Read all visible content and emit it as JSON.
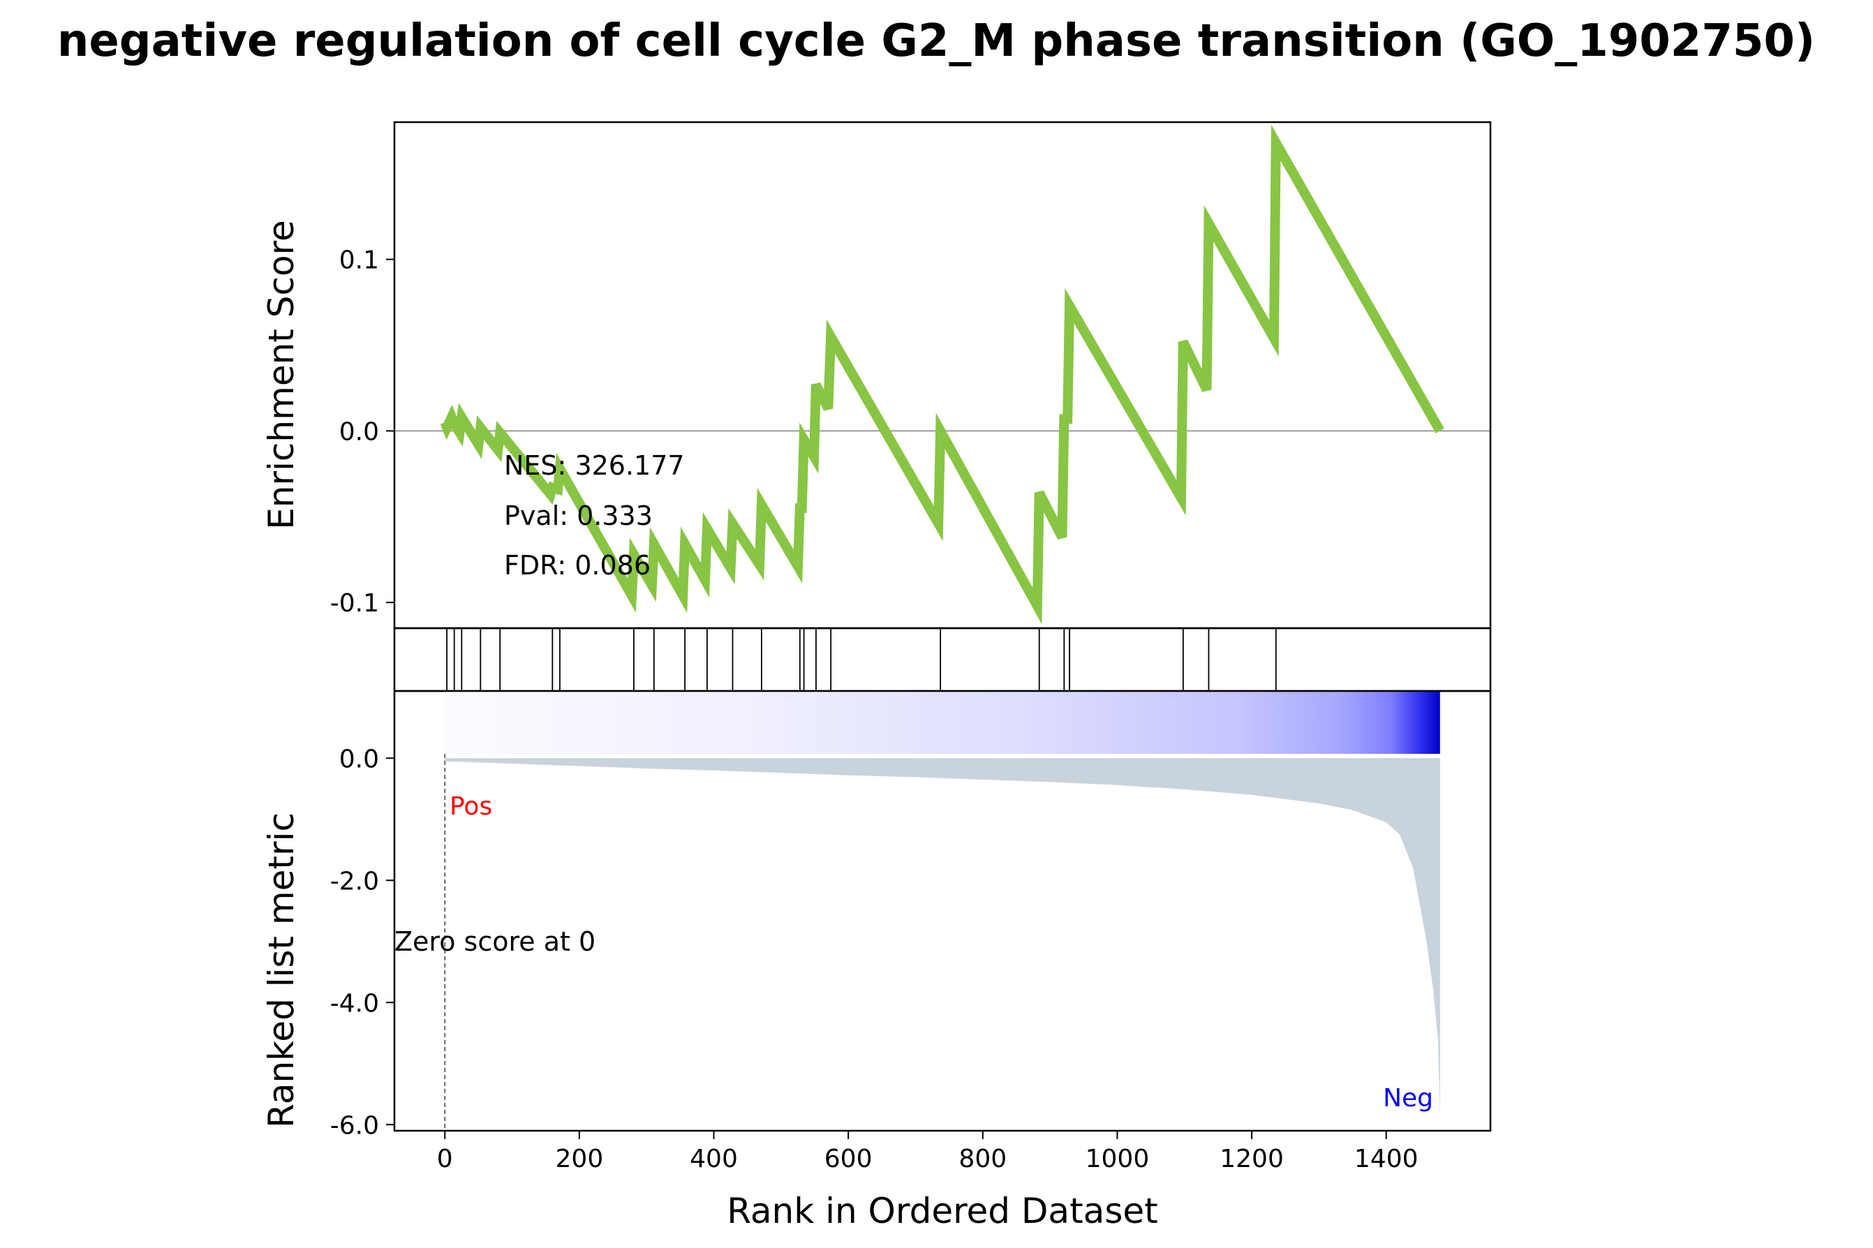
{
  "chart_data": {
    "type": "line",
    "title": "negative regulation of cell cycle G2_M phase transition (GO_1902750)",
    "xlabel": "Rank in Ordered Dataset",
    "xlim": [
      -75,
      1555
    ],
    "x_ticks": [
      0,
      200,
      400,
      600,
      800,
      1000,
      1200,
      1400
    ],
    "enrichment": {
      "ylabel": "Enrichment Score",
      "ylim": [
        -0.115,
        0.18
      ],
      "y_ticks": [
        0.1,
        0.0,
        -0.1
      ],
      "y_tick_labels": [
        "0.1",
        "0.0",
        "-0.1"
      ],
      "line_color": "#88c544",
      "stats": [
        "NES: 326.177",
        "Pval: 0.333",
        "FDR: 0.086"
      ],
      "points": [
        [
          0,
          0.005
        ],
        [
          3,
          0.002
        ],
        [
          10,
          0.008
        ],
        [
          14,
          0.004
        ],
        [
          22,
          -0.001
        ],
        [
          25,
          0.008
        ],
        [
          50,
          -0.008
        ],
        [
          53,
          0.002
        ],
        [
          79,
          -0.011
        ],
        [
          82,
          -0.001
        ],
        [
          157,
          -0.037
        ],
        [
          160,
          -0.033
        ],
        [
          168,
          -0.034
        ],
        [
          171,
          -0.022
        ],
        [
          278,
          -0.096
        ],
        [
          281,
          -0.072
        ],
        [
          308,
          -0.09
        ],
        [
          311,
          -0.066
        ],
        [
          354,
          -0.096
        ],
        [
          357,
          -0.066
        ],
        [
          387,
          -0.087
        ],
        [
          390,
          -0.057
        ],
        [
          425,
          -0.08
        ],
        [
          428,
          -0.054
        ],
        [
          468,
          -0.078
        ],
        [
          471,
          -0.043
        ],
        [
          525,
          -0.079
        ],
        [
          528,
          -0.045
        ],
        [
          531,
          -0.045
        ],
        [
          534,
          -0.005
        ],
        [
          549,
          -0.015
        ],
        [
          552,
          0.027
        ],
        [
          570,
          0.013
        ],
        [
          574,
          0.055
        ],
        [
          734,
          -0.054
        ],
        [
          737,
          0.0
        ],
        [
          881,
          -0.102
        ],
        [
          884,
          -0.036
        ],
        [
          918,
          -0.062
        ],
        [
          921,
          0.007
        ],
        [
          926,
          0.007
        ],
        [
          929,
          0.073
        ],
        [
          1095,
          -0.039
        ],
        [
          1098,
          0.052
        ],
        [
          1133,
          0.024
        ],
        [
          1136,
          0.121
        ],
        [
          1233,
          0.054
        ],
        [
          1236,
          0.168
        ],
        [
          1480,
          0.0
        ]
      ]
    },
    "hits": [
      3,
      14,
      25,
      53,
      82,
      160,
      171,
      281,
      311,
      357,
      390,
      428,
      471,
      528,
      534,
      552,
      574,
      737,
      884,
      921,
      929,
      1098,
      1136,
      1236
    ],
    "ranked_metric": {
      "ylabel": "Ranked list metric",
      "ylim": [
        -6.1,
        1.1
      ],
      "y_ticks": [
        0.0,
        -2.0,
        -4.0,
        -6.0
      ],
      "y_tick_labels": [
        "0.0",
        "-2.0",
        "-4.0",
        "-6.0"
      ],
      "fill_color": "#c8d3dc",
      "total_ranks": 1480,
      "curve": [
        [
          0,
          -0.05
        ],
        [
          100,
          -0.09
        ],
        [
          200,
          -0.13
        ],
        [
          300,
          -0.17
        ],
        [
          400,
          -0.2
        ],
        [
          500,
          -0.24
        ],
        [
          600,
          -0.28
        ],
        [
          700,
          -0.31
        ],
        [
          800,
          -0.35
        ],
        [
          900,
          -0.39
        ],
        [
          1000,
          -0.44
        ],
        [
          1100,
          -0.51
        ],
        [
          1200,
          -0.6
        ],
        [
          1300,
          -0.74
        ],
        [
          1350,
          -0.85
        ],
        [
          1400,
          -1.05
        ],
        [
          1420,
          -1.25
        ],
        [
          1440,
          -1.8
        ],
        [
          1450,
          -2.4
        ],
        [
          1460,
          -3.0
        ],
        [
          1470,
          -3.8
        ],
        [
          1477,
          -4.6
        ],
        [
          1480,
          -5.9
        ]
      ],
      "pos_label": "Pos",
      "neg_label": "Neg",
      "pos_color": "#ff0000",
      "neg_color": "#0000ff",
      "zero_score_label": "Zero score at 0",
      "zero_score_rank": 0
    }
  }
}
